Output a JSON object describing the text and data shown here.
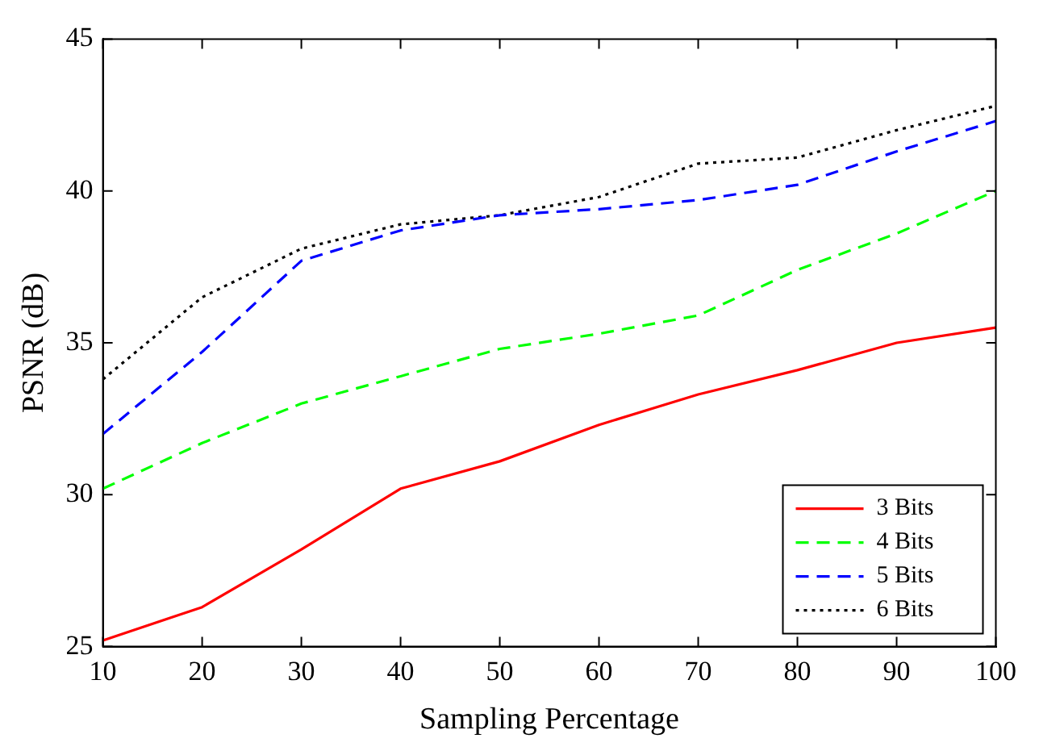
{
  "chart_data": {
    "type": "line",
    "xlabel": "Sampling Percentage",
    "ylabel": "PSNR (dB)",
    "x": [
      10,
      20,
      30,
      40,
      50,
      60,
      70,
      80,
      90,
      100
    ],
    "xlim": [
      10,
      100
    ],
    "xticks": [
      10,
      20,
      30,
      40,
      50,
      60,
      70,
      80,
      90,
      100
    ],
    "ylim": [
      25,
      45
    ],
    "yticks": [
      25,
      30,
      35,
      40,
      45
    ],
    "grid": false,
    "legend": "bottom right",
    "marker": "none",
    "series": [
      {
        "name": "3 Bits",
        "color": "#ff0000",
        "line_style": "solid",
        "values": [
          25.2,
          26.3,
          28.2,
          30.2,
          31.1,
          32.3,
          33.3,
          34.1,
          35.0,
          35.5
        ]
      },
      {
        "name": "4 Bits",
        "color": "#00ff00",
        "line_style": "dashed",
        "values": [
          30.2,
          31.7,
          33.0,
          33.9,
          34.8,
          35.3,
          35.9,
          37.4,
          38.6,
          40.0
        ]
      },
      {
        "name": "5 Bits",
        "color": "#0000ff",
        "line_style": "dashed",
        "values": [
          32.0,
          34.7,
          37.7,
          38.7,
          39.2,
          39.4,
          39.7,
          40.2,
          41.3,
          42.3
        ]
      },
      {
        "name": "6 Bits",
        "color": "#000000",
        "line_style": "dotted",
        "values": [
          33.8,
          36.5,
          38.1,
          38.9,
          39.2,
          39.8,
          40.9,
          41.1,
          42.0,
          42.8
        ]
      }
    ]
  }
}
